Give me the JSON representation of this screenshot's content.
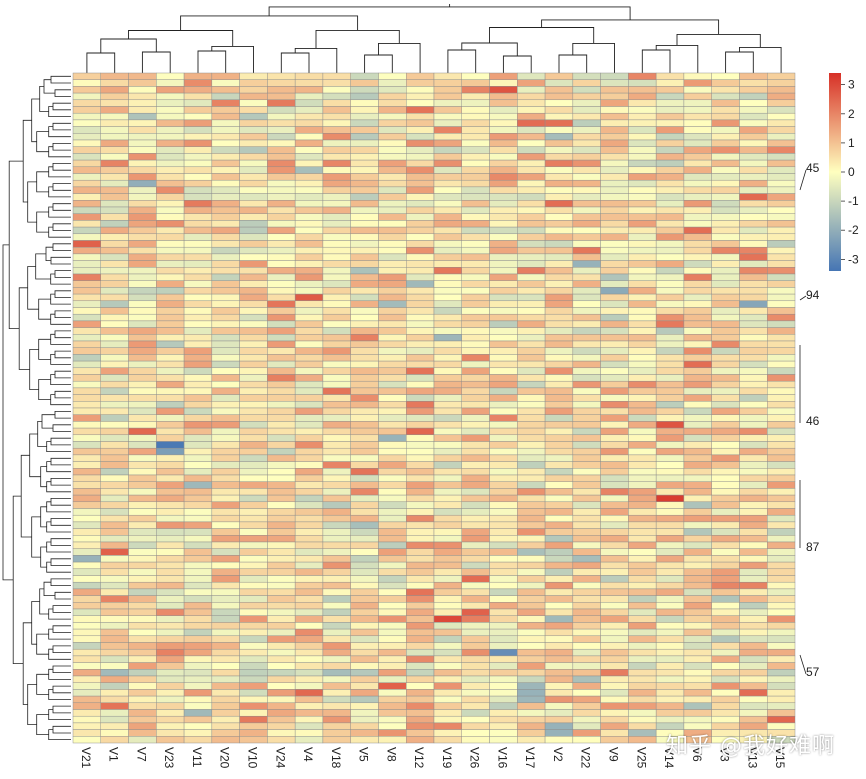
{
  "chart_data": {
    "type": "heatmap",
    "title": "",
    "columns": [
      "V21",
      "V1",
      "V7",
      "V23",
      "V11",
      "V20",
      "V10",
      "V24",
      "V4",
      "V18",
      "V5",
      "V8",
      "V12",
      "V19",
      "V26",
      "V16",
      "V17",
      "V2",
      "V22",
      "V9",
      "V25",
      "V14",
      "V6",
      "V3",
      "V13",
      "V15"
    ],
    "row_count": 100,
    "row_labels_shown": [
      "45",
      "94",
      "46",
      "87",
      "57"
    ],
    "color_scale": {
      "ticks": [
        "3",
        "2",
        "1",
        "0",
        "-1",
        "-2",
        "-3"
      ],
      "range": [
        -3.4,
        3.4
      ],
      "low_color": "#4575b4",
      "mid_color": "#ffffbf",
      "high_color": "#d73027"
    },
    "dendrograms": {
      "rows": true,
      "columns": true
    },
    "seed": 20240607,
    "highlights": [
      {
        "row": 2,
        "col": "V16",
        "value": 2.8
      },
      {
        "row": 5,
        "col": "V12",
        "value": 2.3
      },
      {
        "row": 16,
        "col": "V7",
        "value": -2.0
      },
      {
        "row": 19,
        "col": "V2",
        "value": 2.4
      },
      {
        "row": 25,
        "col": "V21",
        "value": 2.6
      },
      {
        "row": 27,
        "col": "V13",
        "value": 2.3
      },
      {
        "row": 29,
        "col": "V17",
        "value": 2.1
      },
      {
        "row": 32,
        "col": "V9",
        "value": -2.1
      },
      {
        "row": 33,
        "col": "V4",
        "value": 2.7
      },
      {
        "row": 34,
        "col": "V13",
        "value": -2.2
      },
      {
        "row": 37,
        "col": "V14",
        "value": 2.2
      },
      {
        "row": 39,
        "col": "V19",
        "value": -1.8
      },
      {
        "row": 43,
        "col": "V6",
        "value": 2.4
      },
      {
        "row": 45,
        "col": "V24",
        "value": 2.1
      },
      {
        "row": 49,
        "col": "V12",
        "value": 2.2
      },
      {
        "row": 51,
        "col": "V16",
        "value": 2.0
      },
      {
        "row": 52,
        "col": "V14",
        "value": 2.8
      },
      {
        "row": 55,
        "col": "V23",
        "value": -3.3
      },
      {
        "row": 56,
        "col": "V23",
        "value": -2.4
      },
      {
        "row": 58,
        "col": "V18",
        "value": 2.0
      },
      {
        "row": 63,
        "col": "V14",
        "value": 3.2
      },
      {
        "row": 71,
        "col": "V1",
        "value": 2.6
      },
      {
        "row": 72,
        "col": "V21",
        "value": -1.9
      },
      {
        "row": 77,
        "col": "V12",
        "value": 2.3
      },
      {
        "row": 81,
        "col": "V19",
        "value": 3.0
      },
      {
        "row": 80,
        "col": "V26",
        "value": 2.6
      },
      {
        "row": 86,
        "col": "V16",
        "value": -2.8
      },
      {
        "row": 89,
        "col": "V18",
        "value": -1.6
      },
      {
        "row": 91,
        "col": "V17",
        "value": -1.8
      },
      {
        "row": 92,
        "col": "V17",
        "value": -1.9
      },
      {
        "row": 93,
        "col": "V17",
        "value": -1.8
      },
      {
        "row": 92,
        "col": "V13",
        "value": 2.4
      },
      {
        "row": 94,
        "col": "V1",
        "value": 2.3
      },
      {
        "row": 96,
        "col": "V10",
        "value": 2.2
      },
      {
        "row": 96,
        "col": "V15",
        "value": 2.5
      },
      {
        "row": 97,
        "col": "V2",
        "value": -1.9
      },
      {
        "row": 98,
        "col": "V2",
        "value": -1.9
      }
    ]
  },
  "watermark": "知乎 @我好难啊"
}
